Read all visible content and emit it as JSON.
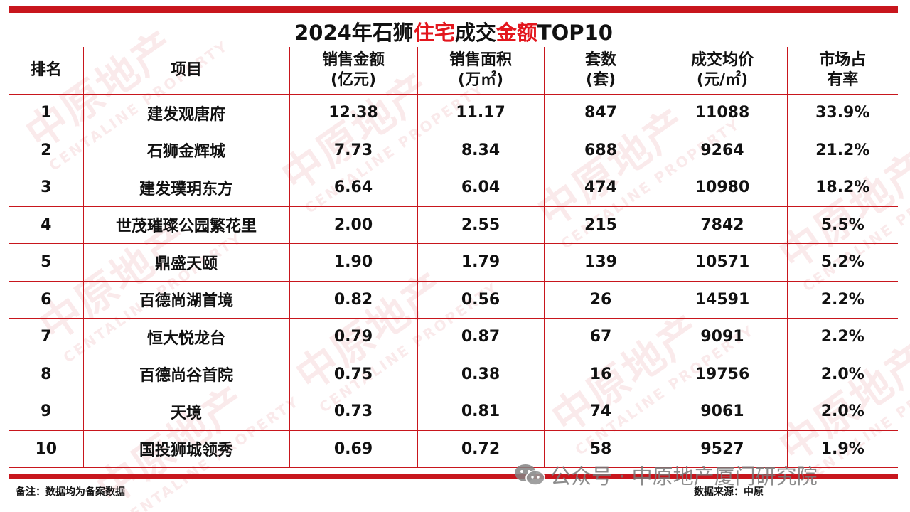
{
  "title": {
    "part1": "2024年石狮",
    "part2": "住宅",
    "part3": "成交",
    "part4": "金额",
    "part5": "TOP10"
  },
  "headers": [
    {
      "line1": "排名",
      "line2": ""
    },
    {
      "line1": "项目",
      "line2": ""
    },
    {
      "line1": "销售金额",
      "line2": "(亿元)"
    },
    {
      "line1": "销售面积",
      "line2": "(万㎡)"
    },
    {
      "line1": "套数",
      "line2": "(套)"
    },
    {
      "line1": "成交均价",
      "line2": "(元/㎡)"
    },
    {
      "line1": "市场占",
      "line2": "有率"
    }
  ],
  "rows": [
    [
      "1",
      "建发观唐府",
      "12.38",
      "11.17",
      "847",
      "11088",
      "33.9%"
    ],
    [
      "2",
      "石狮金辉城",
      "7.73",
      "8.34",
      "688",
      "9264",
      "21.2%"
    ],
    [
      "3",
      "建发璞玥东方",
      "6.64",
      "6.04",
      "474",
      "10980",
      "18.2%"
    ],
    [
      "4",
      "世茂璀璨公园繁花里",
      "2.00",
      "2.55",
      "215",
      "7842",
      "5.5%"
    ],
    [
      "5",
      "鼎盛天颐",
      "1.90",
      "1.79",
      "139",
      "10571",
      "5.2%"
    ],
    [
      "6",
      "百德尚湖首境",
      "0.82",
      "0.56",
      "26",
      "14591",
      "2.2%"
    ],
    [
      "7",
      "恒大悦龙台",
      "0.79",
      "0.87",
      "67",
      "9091",
      "2.2%"
    ],
    [
      "8",
      "百德尚谷首院",
      "0.75",
      "0.38",
      "16",
      "19756",
      "2.0%"
    ],
    [
      "9",
      "天境",
      "0.73",
      "0.81",
      "74",
      "9061",
      "2.0%"
    ],
    [
      "10",
      "国投狮城领秀",
      "0.69",
      "0.72",
      "58",
      "9527",
      "1.9%"
    ]
  ],
  "footer": {
    "note": "备注：数据均为备案数据",
    "source": "数据来源：中原"
  },
  "social": {
    "label": "公众号 · 中原地产厦门研究院",
    "icon": "wechat-icon"
  },
  "watermark": {
    "cn": "中原地产",
    "en": "CENTALINE PROPERTY"
  },
  "colors": {
    "accent": "#c8161d",
    "title_highlight": "#e3161d"
  }
}
